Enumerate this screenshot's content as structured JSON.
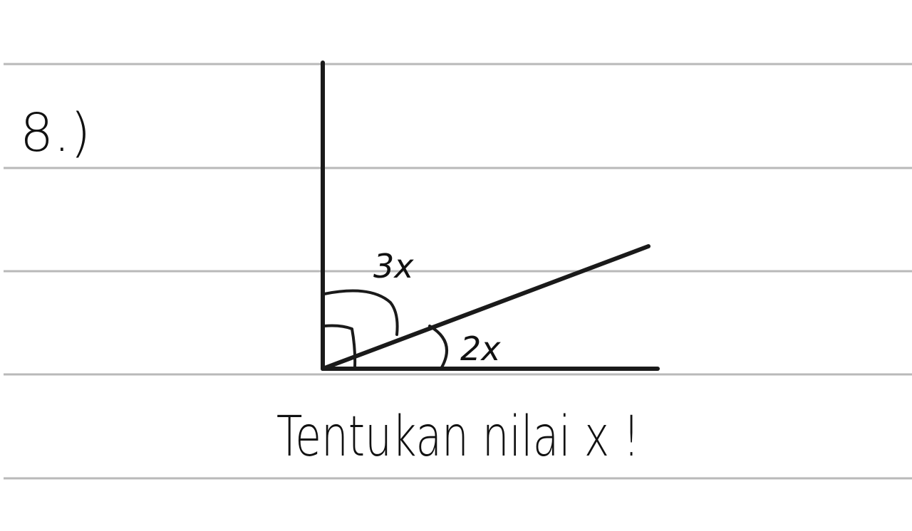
{
  "problem": {
    "number": "8.)",
    "instruction": "Tentukan nilai x !"
  },
  "diagram": {
    "angle_label_upper": "3x",
    "angle_label_lower": "2x",
    "right_angle_marked": true,
    "ink_color": "#1a1a1a",
    "ruled_line_color": "#b9b9b9"
  }
}
